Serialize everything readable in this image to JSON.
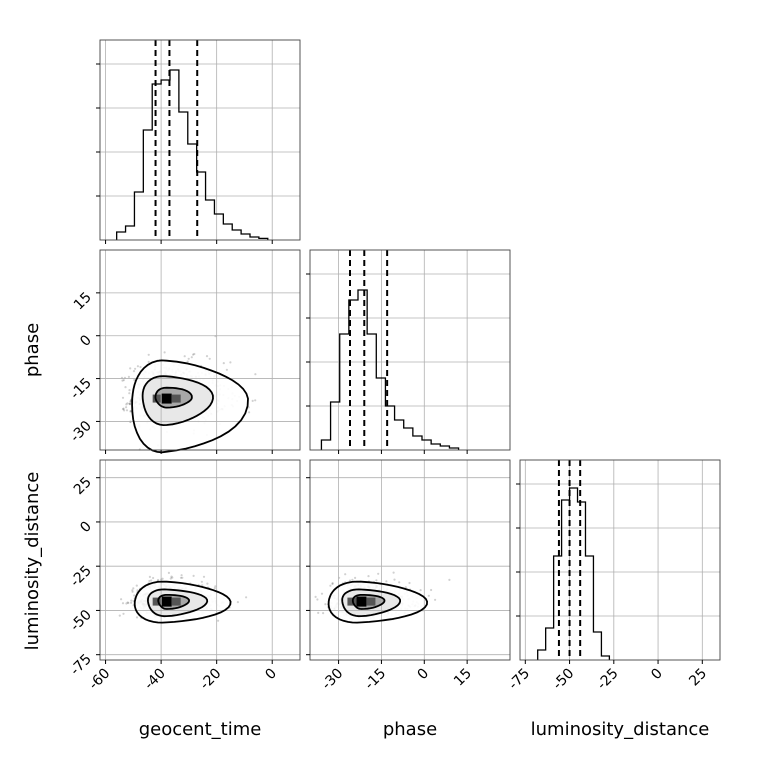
{
  "chart_data": {
    "type": "corner",
    "parameters": [
      "geocent_time",
      "phase",
      "luminosity_distance"
    ],
    "axis_labels": {
      "x": [
        "geocent_time",
        "phase",
        "luminosity_distance"
      ],
      "y": [
        "",
        "phase",
        "luminosity_distance"
      ]
    },
    "ranges": {
      "geocent_time": [
        -62,
        10
      ],
      "phase": [
        -40,
        30
      ],
      "luminosity_distance": [
        -78,
        35
      ]
    },
    "ticks": {
      "geocent_time": [
        "-60",
        "-40",
        "-20",
        "0"
      ],
      "phase": [
        "-30",
        "-15",
        "0",
        "15"
      ],
      "luminosity_distance": [
        "-75",
        "-50",
        "-25",
        "0",
        "25"
      ]
    },
    "grid": true,
    "quantiles": {
      "geocent_time": [
        -42,
        -37,
        -27
      ],
      "phase": [
        -26,
        -21,
        -13
      ],
      "luminosity_distance": [
        -56,
        -50,
        -44
      ]
    },
    "histograms": {
      "geocent_time": {
        "bin_start": -56,
        "bin_width": 3.2,
        "counts": [
          0.04,
          0.07,
          0.24,
          0.55,
          0.78,
          0.8,
          0.85,
          0.64,
          0.48,
          0.34,
          0.2,
          0.13,
          0.08,
          0.05,
          0.03,
          0.015,
          0.008
        ]
      },
      "phase": {
        "bin_start": -36,
        "bin_width": 3.2,
        "counts": [
          0.05,
          0.24,
          0.58,
          0.75,
          0.8,
          0.58,
          0.36,
          0.22,
          0.15,
          0.11,
          0.07,
          0.05,
          0.03,
          0.02,
          0.01
        ]
      },
      "luminosity_distance": {
        "bin_start": -68,
        "bin_width": 4.5,
        "counts": [
          0.05,
          0.16,
          0.52,
          0.8,
          0.86,
          0.79,
          0.52,
          0.14,
          0.02
        ]
      }
    },
    "joint_2d": [
      {
        "x": "geocent_time",
        "y": "phase",
        "center": [
          -38,
          -22
        ],
        "contours": [
          {
            "rx": [
              4,
              9
            ],
            "ry": [
              3,
              4
            ]
          },
          {
            "rx": [
              9,
              16
            ],
            "ry": [
              9,
              8
            ]
          },
          {
            "rx": [
              13,
              28
            ],
            "ry": [
              19,
              13
            ]
          }
        ]
      },
      {
        "x": "geocent_time",
        "y": "luminosity_distance",
        "center": [
          -38,
          -45
        ],
        "contours": [
          {
            "rx": [
              3,
              8
            ],
            "ry": [
              4,
              4
            ]
          },
          {
            "rx": [
              7,
              14
            ],
            "ry": [
              8,
              7
            ]
          },
          {
            "rx": [
              12,
              22
            ],
            "ry": [
              12,
              11
            ]
          }
        ]
      },
      {
        "x": "phase",
        "y": "luminosity_distance",
        "center": [
          -22,
          -45
        ],
        "contours": [
          {
            "rx": [
              3,
              8
            ],
            "ry": [
              4,
              4
            ]
          },
          {
            "rx": [
              7,
              13
            ],
            "ry": [
              8,
              7
            ]
          },
          {
            "rx": [
              12,
              22
            ],
            "ry": [
              12,
              11
            ]
          }
        ]
      }
    ]
  }
}
